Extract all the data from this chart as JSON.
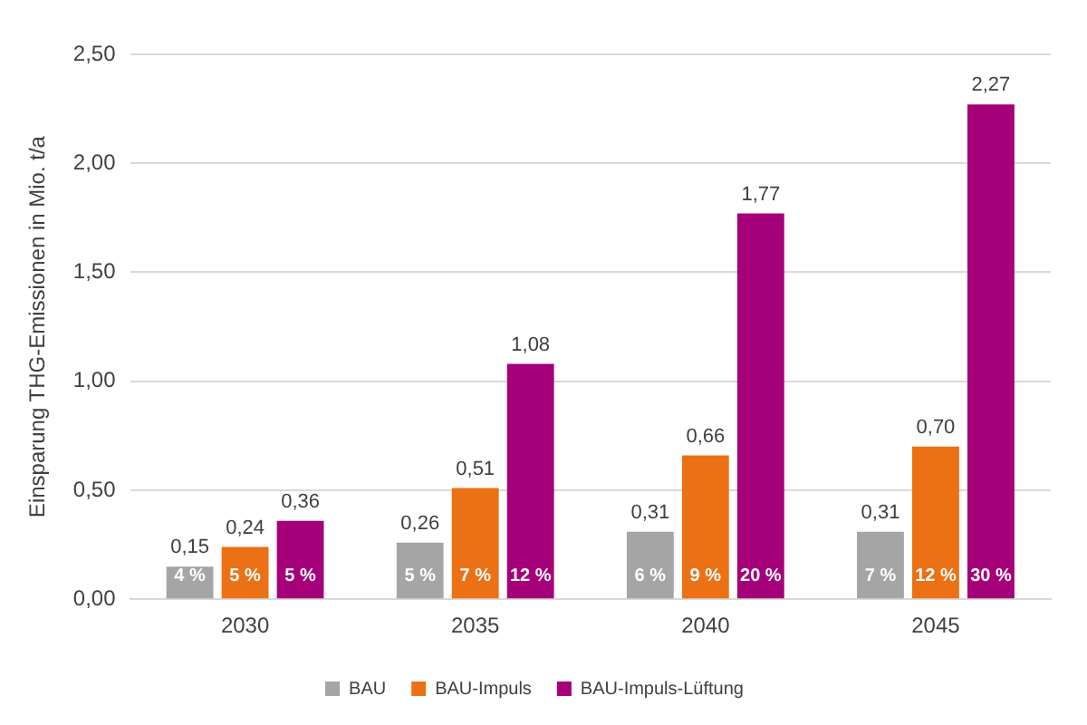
{
  "chart_data": {
    "type": "bar",
    "ylabel": "Einsparung THG-Emissionen in Mio. t/a",
    "categories": [
      "2030",
      "2035",
      "2040",
      "2045"
    ],
    "series": [
      {
        "name": "BAU",
        "color": "#a5a5a5",
        "values": [
          0.15,
          0.26,
          0.31,
          0.31
        ],
        "value_labels": [
          "0,15",
          "0,26",
          "0,31",
          "0,31"
        ]
      },
      {
        "name": "BAU-Impuls",
        "color": "#ec7014",
        "values": [
          0.24,
          0.51,
          0.66,
          0.7
        ],
        "value_labels": [
          "0,24",
          "0,51",
          "0,66",
          "0,70"
        ]
      },
      {
        "name": "BAU-Impuls-Lüftung",
        "color": "#a5007a",
        "values": [
          0.36,
          1.08,
          1.77,
          2.27
        ],
        "value_labels": [
          "0,36",
          "1,08",
          "1,77",
          "2,27"
        ]
      }
    ],
    "ylim": [
      0,
      2.5
    ],
    "yticks": [
      {
        "value": 0,
        "label": "0,00"
      },
      {
        "value": 0.5,
        "label": "0,50"
      },
      {
        "value": 1,
        "label": "1,00"
      },
      {
        "value": 1.5,
        "label": "1,50"
      },
      {
        "value": 2,
        "label": "2,00"
      },
      {
        "value": 2.5,
        "label": "2,50"
      }
    ],
    "grid": "y",
    "legend": "bottom",
    "annotations": [
      "4 %",
      "5 %",
      "5 %",
      "5 %",
      "7 %",
      "12 %",
      "6 %",
      "9 %",
      "20 %",
      "7 %",
      "12 %",
      "30 %"
    ]
  }
}
